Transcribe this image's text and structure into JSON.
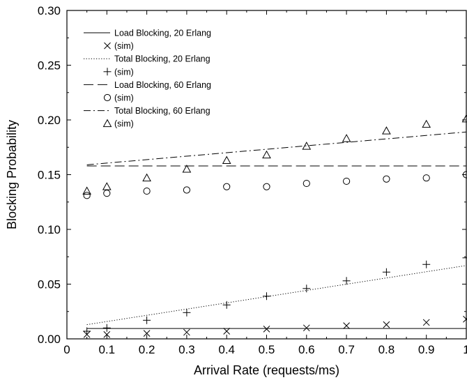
{
  "chart_data": {
    "type": "line",
    "title": "",
    "xlabel": "Arrival Rate (requests/ms)",
    "ylabel": "Blocking Probability",
    "xlim": [
      0,
      1
    ],
    "ylim": [
      0,
      0.3
    ],
    "grid": false,
    "legend_position": "top-left",
    "x_ticks": [
      "0",
      "0.1",
      "0.2",
      "0.3",
      "0.4",
      "0.5",
      "0.6",
      "0.7",
      "0.8",
      "0.9",
      "1"
    ],
    "y_ticks": [
      "0.00",
      "0.05",
      "0.10",
      "0.15",
      "0.20",
      "0.25",
      "0.30"
    ],
    "series": [
      {
        "name": "Load Blocking, 20 Erlang",
        "kind": "line",
        "dash": "solid",
        "x": [
          0.05,
          1.0
        ],
        "y": [
          0.0095,
          0.0095
        ]
      },
      {
        "name": "(sim)",
        "kind": "marker",
        "marker": "x",
        "x": [
          0.05,
          0.1,
          0.2,
          0.3,
          0.4,
          0.5,
          0.6,
          0.7,
          0.8,
          0.9,
          1.0
        ],
        "y": [
          0.004,
          0.004,
          0.005,
          0.006,
          0.007,
          0.009,
          0.01,
          0.012,
          0.013,
          0.015,
          0.018
        ]
      },
      {
        "name": "Total Blocking, 20 Erlang",
        "kind": "line",
        "dash": "dotted",
        "x": [
          0.05,
          1.0
        ],
        "y": [
          0.013,
          0.067
        ]
      },
      {
        "name": "(sim)",
        "kind": "marker",
        "marker": "plus",
        "x": [
          0.05,
          0.1,
          0.2,
          0.3,
          0.4,
          0.5,
          0.6,
          0.7,
          0.8,
          0.9,
          1.0
        ],
        "y": [
          0.007,
          0.01,
          0.017,
          0.024,
          0.031,
          0.039,
          0.046,
          0.053,
          0.061,
          0.068,
          0.074
        ]
      },
      {
        "name": "Load Blocking, 60 Erlang",
        "kind": "line",
        "dash": "dashed",
        "x": [
          0.05,
          1.0
        ],
        "y": [
          0.158,
          0.158
        ]
      },
      {
        "name": "(sim)",
        "kind": "marker",
        "marker": "circle",
        "x": [
          0.05,
          0.1,
          0.2,
          0.3,
          0.4,
          0.5,
          0.6,
          0.7,
          0.8,
          0.9,
          1.0
        ],
        "y": [
          0.131,
          0.133,
          0.135,
          0.136,
          0.139,
          0.139,
          0.142,
          0.144,
          0.146,
          0.147,
          0.15
        ]
      },
      {
        "name": "Total Blocking, 60 Erlang",
        "kind": "line",
        "dash": "dashdot",
        "x": [
          0.05,
          1.0
        ],
        "y": [
          0.159,
          0.189
        ]
      },
      {
        "name": "(sim)",
        "kind": "marker",
        "marker": "triangle",
        "x": [
          0.05,
          0.1,
          0.2,
          0.3,
          0.4,
          0.5,
          0.6,
          0.7,
          0.8,
          0.9,
          1.0
        ],
        "y": [
          0.135,
          0.139,
          0.147,
          0.155,
          0.163,
          0.168,
          0.176,
          0.183,
          0.19,
          0.196,
          0.201
        ]
      }
    ]
  }
}
